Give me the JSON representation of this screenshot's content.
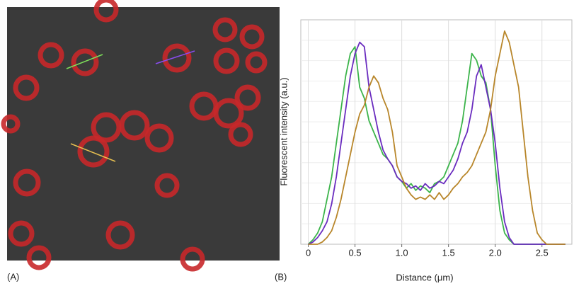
{
  "panels": [
    "(A)",
    "(B)"
  ],
  "chart_data": {
    "type": "line",
    "x_label": "Distance (μm)",
    "y_label": "Fluorescent intensity (a.u.)",
    "x": [
      0,
      0.05,
      0.1,
      0.15,
      0.2,
      0.25,
      0.3,
      0.35,
      0.4,
      0.45,
      0.5,
      0.55,
      0.6,
      0.65,
      0.7,
      0.75,
      0.8,
      0.85,
      0.9,
      0.95,
      1.0,
      1.05,
      1.1,
      1.15,
      1.2,
      1.25,
      1.3,
      1.35,
      1.4,
      1.45,
      1.5,
      1.55,
      1.6,
      1.65,
      1.7,
      1.75,
      1.8,
      1.85,
      1.9,
      1.95,
      2.0,
      2.05,
      2.1,
      2.15,
      2.2,
      2.25,
      2.3,
      2.35,
      2.4,
      2.45,
      2.5,
      2.55,
      2.6,
      2.65,
      2.7,
      2.75
    ],
    "series": [
      {
        "color": "#3cb44b",
        "values": [
          0,
          0.02,
          0.05,
          0.1,
          0.2,
          0.3,
          0.45,
          0.6,
          0.75,
          0.85,
          0.88,
          0.7,
          0.65,
          0.55,
          0.5,
          0.45,
          0.4,
          0.38,
          0.35,
          0.3,
          0.28,
          0.25,
          0.27,
          0.24,
          0.26,
          0.25,
          0.23,
          0.27,
          0.28,
          0.3,
          0.35,
          0.4,
          0.45,
          0.55,
          0.7,
          0.85,
          0.82,
          0.75,
          0.72,
          0.6,
          0.35,
          0.15,
          0.05,
          0.02,
          0,
          0,
          0,
          0,
          0,
          0,
          0,
          0,
          0,
          0,
          0,
          0
        ]
      },
      {
        "color": "#6a2cbf",
        "values": [
          0,
          0.01,
          0.03,
          0.06,
          0.1,
          0.18,
          0.3,
          0.45,
          0.6,
          0.75,
          0.85,
          0.9,
          0.88,
          0.7,
          0.6,
          0.5,
          0.42,
          0.38,
          0.35,
          0.3,
          0.28,
          0.27,
          0.25,
          0.26,
          0.24,
          0.27,
          0.25,
          0.26,
          0.28,
          0.27,
          0.3,
          0.33,
          0.38,
          0.45,
          0.5,
          0.6,
          0.75,
          0.8,
          0.7,
          0.6,
          0.45,
          0.25,
          0.1,
          0.03,
          0,
          0,
          0,
          0,
          0,
          0,
          0,
          0,
          0,
          0,
          0,
          0
        ]
      },
      {
        "color": "#b8862a",
        "values": [
          0,
          0,
          0,
          0.01,
          0.03,
          0.06,
          0.12,
          0.2,
          0.3,
          0.4,
          0.5,
          0.58,
          0.62,
          0.7,
          0.75,
          0.72,
          0.65,
          0.6,
          0.5,
          0.35,
          0.3,
          0.25,
          0.22,
          0.2,
          0.21,
          0.2,
          0.22,
          0.2,
          0.23,
          0.2,
          0.22,
          0.25,
          0.27,
          0.3,
          0.32,
          0.35,
          0.4,
          0.45,
          0.5,
          0.6,
          0.75,
          0.85,
          0.95,
          0.9,
          0.8,
          0.7,
          0.5,
          0.3,
          0.15,
          0.05,
          0.02,
          0,
          0,
          0,
          0,
          0
        ]
      }
    ],
    "xlim": [
      -0.08,
      2.82
    ],
    "ylim": [
      0,
      1
    ],
    "xticks": [
      0,
      0.5,
      {
        "value": 1,
        "label": "1.0"
      },
      1.5,
      {
        "value": 2,
        "label": "2.0"
      },
      2.5
    ],
    "grid": true
  }
}
